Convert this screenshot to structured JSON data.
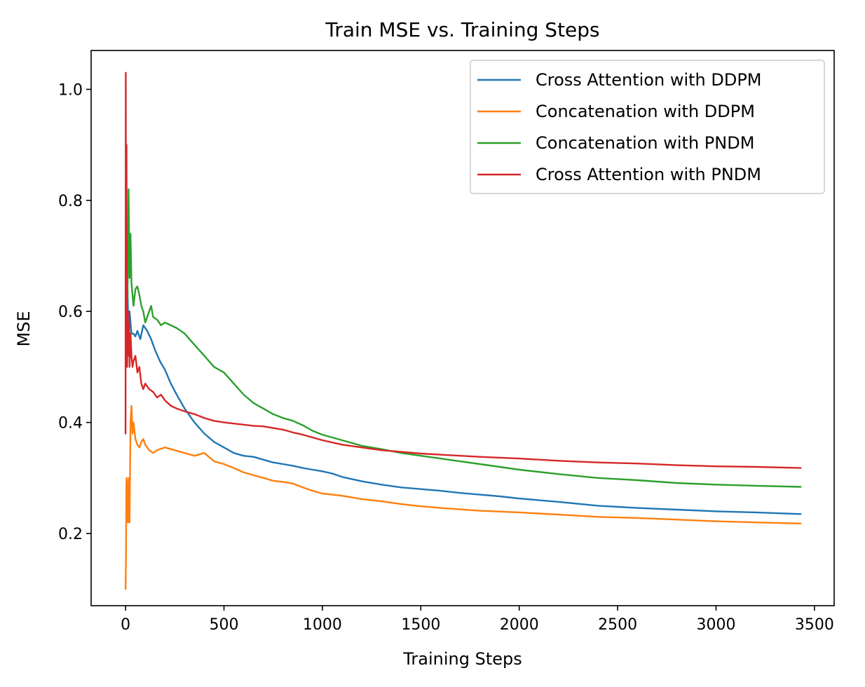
{
  "chart_data": {
    "type": "line",
    "title": "Train MSE vs. Training Steps",
    "xlabel": "Training Steps",
    "ylabel": "MSE",
    "xlim": [
      -175,
      3600
    ],
    "ylim": [
      0.07,
      1.07
    ],
    "xticks": [
      0,
      500,
      1000,
      1500,
      2000,
      2500,
      3000,
      3500
    ],
    "xtick_labels": [
      "0",
      "500",
      "1000",
      "1500",
      "2000",
      "2500",
      "3000",
      "3500"
    ],
    "yticks": [
      0.2,
      0.4,
      0.6,
      0.8,
      1.0
    ],
    "ytick_labels": [
      "0.2",
      "0.4",
      "0.6",
      "0.8",
      "1.0"
    ],
    "grid": false,
    "legend_position": "top-right",
    "series": [
      {
        "name": "Cross Attention with DDPM",
        "color": "#1f77b4",
        "x": [
          0,
          3,
          6,
          10,
          15,
          20,
          25,
          30,
          40,
          50,
          60,
          75,
          90,
          100,
          110,
          130,
          150,
          175,
          200,
          230,
          260,
          300,
          350,
          400,
          450,
          500,
          550,
          600,
          650,
          700,
          750,
          800,
          850,
          900,
          950,
          1000,
          1050,
          1100,
          1200,
          1300,
          1400,
          1500,
          1600,
          1700,
          1800,
          1900,
          2000,
          2200,
          2400,
          2600,
          2800,
          3000,
          3200,
          3430
        ],
        "y": [
          0.6,
          0.76,
          0.58,
          0.64,
          0.55,
          0.6,
          0.58,
          0.56,
          0.56,
          0.555,
          0.565,
          0.55,
          0.575,
          0.57,
          0.565,
          0.55,
          0.53,
          0.51,
          0.495,
          0.47,
          0.45,
          0.425,
          0.4,
          0.38,
          0.365,
          0.355,
          0.345,
          0.34,
          0.338,
          0.333,
          0.328,
          0.325,
          0.322,
          0.318,
          0.315,
          0.312,
          0.308,
          0.302,
          0.294,
          0.288,
          0.283,
          0.28,
          0.277,
          0.273,
          0.27,
          0.267,
          0.263,
          0.257,
          0.25,
          0.246,
          0.243,
          0.24,
          0.238,
          0.235
        ]
      },
      {
        "name": "Concatenation with DDPM",
        "color": "#ff7f0e",
        "x": [
          0,
          2,
          4,
          6,
          8,
          12,
          16,
          20,
          25,
          30,
          35,
          40,
          50,
          60,
          70,
          80,
          90,
          100,
          120,
          140,
          160,
          200,
          250,
          300,
          350,
          400,
          450,
          500,
          550,
          600,
          650,
          700,
          750,
          800,
          850,
          900,
          950,
          1000,
          1100,
          1200,
          1300,
          1400,
          1500,
          1600,
          1800,
          2000,
          2200,
          2400,
          2600,
          2800,
          3000,
          3200,
          3430
        ],
        "y": [
          0.1,
          0.15,
          0.29,
          0.3,
          0.25,
          0.22,
          0.3,
          0.22,
          0.4,
          0.43,
          0.38,
          0.4,
          0.37,
          0.36,
          0.355,
          0.365,
          0.37,
          0.36,
          0.35,
          0.345,
          0.35,
          0.355,
          0.35,
          0.345,
          0.34,
          0.345,
          0.33,
          0.325,
          0.318,
          0.31,
          0.305,
          0.3,
          0.295,
          0.293,
          0.29,
          0.283,
          0.277,
          0.272,
          0.268,
          0.262,
          0.258,
          0.253,
          0.249,
          0.246,
          0.241,
          0.238,
          0.234,
          0.23,
          0.228,
          0.225,
          0.222,
          0.22,
          0.218
        ]
      },
      {
        "name": "Concatenation with PNDM",
        "color": "#2ca02c",
        "x": [
          0,
          3,
          6,
          10,
          15,
          20,
          25,
          30,
          40,
          50,
          60,
          70,
          80,
          90,
          100,
          110,
          120,
          130,
          140,
          160,
          180,
          200,
          230,
          260,
          300,
          350,
          400,
          450,
          500,
          550,
          600,
          650,
          700,
          750,
          800,
          850,
          900,
          950,
          1000,
          1100,
          1200,
          1300,
          1400,
          1500,
          1600,
          1800,
          2000,
          2200,
          2400,
          2600,
          2800,
          3000,
          3200,
          3430
        ],
        "y": [
          0.55,
          0.65,
          0.68,
          0.62,
          0.82,
          0.66,
          0.74,
          0.65,
          0.61,
          0.64,
          0.645,
          0.63,
          0.61,
          0.6,
          0.58,
          0.59,
          0.6,
          0.61,
          0.59,
          0.585,
          0.575,
          0.58,
          0.575,
          0.57,
          0.56,
          0.54,
          0.52,
          0.5,
          0.49,
          0.47,
          0.45,
          0.435,
          0.425,
          0.415,
          0.408,
          0.403,
          0.395,
          0.385,
          0.378,
          0.368,
          0.358,
          0.352,
          0.345,
          0.34,
          0.335,
          0.325,
          0.315,
          0.307,
          0.3,
          0.296,
          0.291,
          0.288,
          0.286,
          0.284
        ]
      },
      {
        "name": "Cross Attention with PNDM",
        "color": "#d62728",
        "x": [
          0,
          1,
          2,
          3,
          4,
          5,
          6,
          8,
          10,
          12,
          15,
          18,
          20,
          25,
          30,
          35,
          40,
          50,
          60,
          70,
          80,
          90,
          100,
          120,
          140,
          160,
          180,
          200,
          230,
          260,
          300,
          350,
          400,
          450,
          500,
          550,
          600,
          650,
          700,
          750,
          800,
          850,
          900,
          950,
          1000,
          1100,
          1200,
          1300,
          1400,
          1500,
          1600,
          1800,
          2000,
          2200,
          2400,
          2600,
          2800,
          3000,
          3200,
          3430
        ],
        "y": [
          0.38,
          1.03,
          0.7,
          0.85,
          0.6,
          0.9,
          0.62,
          0.5,
          0.58,
          0.55,
          0.52,
          0.6,
          0.5,
          0.56,
          0.52,
          0.5,
          0.51,
          0.52,
          0.49,
          0.5,
          0.47,
          0.46,
          0.47,
          0.46,
          0.455,
          0.445,
          0.45,
          0.44,
          0.43,
          0.425,
          0.42,
          0.415,
          0.408,
          0.403,
          0.4,
          0.398,
          0.396,
          0.394,
          0.393,
          0.39,
          0.387,
          0.382,
          0.378,
          0.373,
          0.368,
          0.36,
          0.355,
          0.35,
          0.347,
          0.344,
          0.342,
          0.338,
          0.335,
          0.331,
          0.328,
          0.326,
          0.323,
          0.321,
          0.32,
          0.318
        ]
      }
    ]
  }
}
